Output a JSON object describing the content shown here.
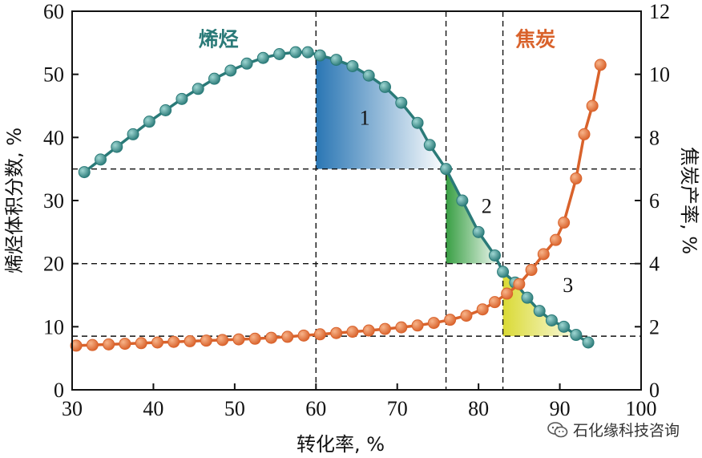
{
  "chart_data": {
    "type": "line",
    "xlabel": "转化率, %",
    "ylabel_left": "烯烃体积分数, %",
    "ylabel_right": "焦炭产率, %",
    "xlim": [
      30,
      100
    ],
    "ylim_left": [
      0,
      60
    ],
    "ylim_right": [
      0,
      12
    ],
    "x_ticks": [
      30,
      40,
      50,
      60,
      70,
      80,
      90,
      100
    ],
    "y_left_ticks": [
      0,
      10,
      20,
      30,
      40,
      50,
      60
    ],
    "y_right_ticks": [
      0,
      2,
      4,
      6,
      8,
      10,
      12
    ],
    "grid": false,
    "colors": {
      "olefin": "#2a7a78",
      "olefin_marker": "#3d9d98",
      "coke": "#d9622b",
      "coke_marker": "#e8743a",
      "region1": "#1f6fb0",
      "region2": "#2e9a3a",
      "region3": "#d8d82a"
    },
    "series": [
      {
        "name": "烯烃",
        "axis": "left",
        "points": [
          [
            31.5,
            34.5
          ],
          [
            33.5,
            36.5
          ],
          [
            35.5,
            38.5
          ],
          [
            37.5,
            40.5
          ],
          [
            39.5,
            42.5
          ],
          [
            41.5,
            44.3
          ],
          [
            43.5,
            46.1
          ],
          [
            45.5,
            47.7
          ],
          [
            47.5,
            49.3
          ],
          [
            49.5,
            50.6
          ],
          [
            51.5,
            51.7
          ],
          [
            53.5,
            52.6
          ],
          [
            55.5,
            53.2
          ],
          [
            57.5,
            53.5
          ],
          [
            59.0,
            53.5
          ],
          [
            60.5,
            53.0
          ],
          [
            62.5,
            52.3
          ],
          [
            64.5,
            51.3
          ],
          [
            66.5,
            49.8
          ],
          [
            68.5,
            48.0
          ],
          [
            70.5,
            45.5
          ],
          [
            72.5,
            42.3
          ],
          [
            74.0,
            38.8
          ],
          [
            76.0,
            35.0
          ],
          [
            78.0,
            30.0
          ],
          [
            80.0,
            25.0
          ],
          [
            82.0,
            21.3
          ],
          [
            83.0,
            18.7
          ],
          [
            84.5,
            17.0
          ],
          [
            86.0,
            14.6
          ],
          [
            87.5,
            12.5
          ],
          [
            89.0,
            11.0
          ],
          [
            90.5,
            10.0
          ],
          [
            92.0,
            8.7
          ],
          [
            93.5,
            7.5
          ]
        ]
      },
      {
        "name": "焦炭",
        "axis": "right",
        "points": [
          [
            30.5,
            1.4
          ],
          [
            32.5,
            1.42
          ],
          [
            34.5,
            1.44
          ],
          [
            36.5,
            1.46
          ],
          [
            38.5,
            1.48
          ],
          [
            40.5,
            1.5
          ],
          [
            42.5,
            1.52
          ],
          [
            44.5,
            1.54
          ],
          [
            46.5,
            1.56
          ],
          [
            48.5,
            1.58
          ],
          [
            50.5,
            1.6
          ],
          [
            52.5,
            1.62
          ],
          [
            54.5,
            1.65
          ],
          [
            56.5,
            1.68
          ],
          [
            58.5,
            1.72
          ],
          [
            60.5,
            1.76
          ],
          [
            62.5,
            1.8
          ],
          [
            64.5,
            1.84
          ],
          [
            66.5,
            1.88
          ],
          [
            68.5,
            1.93
          ],
          [
            70.5,
            1.98
          ],
          [
            72.5,
            2.04
          ],
          [
            74.5,
            2.12
          ],
          [
            76.5,
            2.22
          ],
          [
            78.5,
            2.35
          ],
          [
            80.5,
            2.55
          ],
          [
            82.0,
            2.78
          ],
          [
            83.5,
            3.05
          ],
          [
            85.0,
            3.35
          ],
          [
            86.5,
            3.8
          ],
          [
            88.0,
            4.3
          ],
          [
            89.5,
            4.75
          ],
          [
            90.5,
            5.3
          ],
          [
            92.0,
            6.7
          ],
          [
            93.0,
            8.1
          ],
          [
            94.0,
            9.0
          ],
          [
            95.0,
            10.3
          ]
        ]
      }
    ],
    "guides": {
      "vertical_x": [
        60,
        76,
        83
      ],
      "horizontal_left_y": [
        35,
        20
      ],
      "horizontal_right_y": [
        1.7
      ]
    },
    "regions": [
      {
        "label": "1",
        "x_from": 60,
        "x_to": 76,
        "y_floor": 35,
        "label_at": [
          66,
          42
        ]
      },
      {
        "label": "2",
        "x_from": 76,
        "x_to": 83,
        "y_floor": 20,
        "label_at": [
          81,
          28
        ]
      },
      {
        "label": "3",
        "x_from": 83,
        "x_to": 93.5,
        "y_floor": 8.5,
        "label_at": [
          91,
          15.5
        ]
      }
    ],
    "annotations": [
      {
        "text": "烯烃",
        "series": "烯烃",
        "at": [
          48,
          54.5
        ]
      },
      {
        "text": "焦炭",
        "series": "焦炭",
        "at": [
          87,
          10.9
        ]
      }
    ]
  },
  "watermark": {
    "text": "石化缘科技咨询",
    "icon": "wechat-icon"
  }
}
